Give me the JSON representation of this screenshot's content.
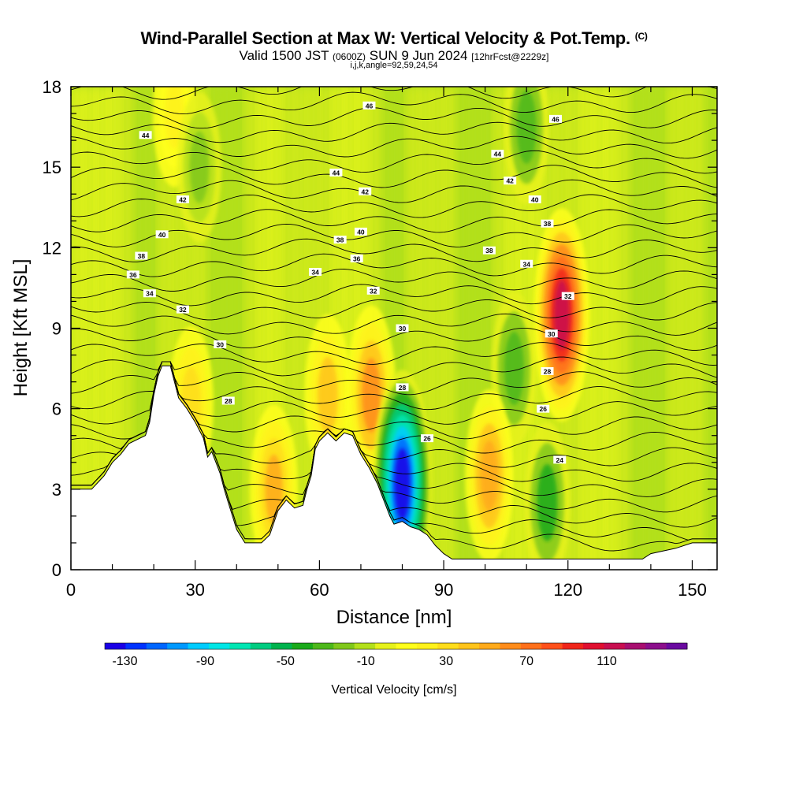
{
  "header": {
    "title": "Wind-Parallel Section at Max W: Vertical Velocity & Pot.Temp.",
    "copyright": "(C)",
    "valid_prefix": "Valid 1500 JST",
    "valid_utc": "(0600Z)",
    "valid_date": "SUN 9 Jun 2024",
    "forecast_info": "[12hrFcst@2229z]",
    "params": "i,j,k,angle=92,59,24,54"
  },
  "chart_data": {
    "type": "heatmap",
    "title": "Wind-Parallel Section at Max W: Vertical Velocity & Pot.Temp.",
    "xlabel": "Distance [nm]",
    "ylabel": "Height [Kft MSL]",
    "xlim": [
      0,
      156
    ],
    "ylim": [
      0,
      18
    ],
    "x_ticks": [
      0,
      30,
      60,
      90,
      120,
      150
    ],
    "y_ticks": [
      0,
      3,
      6,
      9,
      12,
      15,
      18
    ],
    "colorbar": {
      "label": "Vertical Velocity [cm/s]",
      "min": -140,
      "max": 150,
      "tick_values": [
        -130,
        -90,
        -50,
        -10,
        30,
        70,
        110
      ],
      "colors": [
        "#1a00e6",
        "#0033ff",
        "#0066ff",
        "#0099ff",
        "#00ccff",
        "#00e6e6",
        "#00e6b3",
        "#00cc80",
        "#00b34d",
        "#1aaa1a",
        "#4db81a",
        "#80c81a",
        "#b3e01a",
        "#e6f21a",
        "#ffff1a",
        "#fff21a",
        "#ffdd1a",
        "#ffc41a",
        "#ffaa1a",
        "#ff8c1a",
        "#ff701a",
        "#ff501a",
        "#f0261a",
        "#e01030",
        "#c80f50",
        "#a80f70",
        "#8c0f8c",
        "#6a0aa0"
      ]
    },
    "terrain": [
      [
        0,
        3
      ],
      [
        5,
        3
      ],
      [
        8,
        3.5
      ],
      [
        10,
        4
      ],
      [
        12,
        4.3
      ],
      [
        14,
        4.7
      ],
      [
        18,
        5
      ],
      [
        19,
        5.5
      ],
      [
        20,
        6.5
      ],
      [
        21,
        7.2
      ],
      [
        22,
        7.6
      ],
      [
        24,
        7.6
      ],
      [
        25,
        7
      ],
      [
        26,
        6.4
      ],
      [
        28,
        6
      ],
      [
        30,
        5.5
      ],
      [
        32,
        4.9
      ],
      [
        33,
        4.2
      ],
      [
        34,
        4.4
      ],
      [
        35,
        4
      ],
      [
        36,
        3.6
      ],
      [
        37,
        3
      ],
      [
        38,
        2.5
      ],
      [
        40,
        1.5
      ],
      [
        42,
        1
      ],
      [
        46,
        1
      ],
      [
        48,
        1.3
      ],
      [
        50,
        2.2
      ],
      [
        52,
        2.6
      ],
      [
        54,
        2.3
      ],
      [
        56,
        2.4
      ],
      [
        57,
        3
      ],
      [
        58,
        3.5
      ],
      [
        59,
        4.5
      ],
      [
        60,
        4.8
      ],
      [
        62,
        5.1
      ],
      [
        64,
        4.8
      ],
      [
        66,
        5.1
      ],
      [
        68,
        5
      ],
      [
        70,
        4.3
      ],
      [
        72,
        3.8
      ],
      [
        74,
        3.2
      ],
      [
        75,
        2.8
      ],
      [
        76,
        2.4
      ],
      [
        77,
        2
      ],
      [
        78,
        1.7
      ],
      [
        80,
        1.8
      ],
      [
        82,
        1.6
      ],
      [
        84,
        1.5
      ],
      [
        86,
        1.3
      ],
      [
        88,
        0.9
      ],
      [
        90,
        0.6
      ],
      [
        92,
        0.4
      ],
      [
        138,
        0.4
      ],
      [
        140,
        0.6
      ],
      [
        146,
        0.8
      ],
      [
        150,
        1
      ],
      [
        156,
        1
      ]
    ],
    "updraft_cores": [
      {
        "x": 118.5,
        "y": 9.5,
        "w": 110
      },
      {
        "x": 72.5,
        "y": 6.5,
        "w": 65
      },
      {
        "x": 101,
        "y": 3.5,
        "w": 55
      },
      {
        "x": 49,
        "y": 3,
        "w": 50
      },
      {
        "x": 62,
        "y": 6.5,
        "w": 40
      },
      {
        "x": 29,
        "y": 6.2,
        "w": 30
      },
      {
        "x": 25,
        "y": 17,
        "w": 20
      }
    ],
    "downdraft_cores": [
      {
        "x": 80,
        "y": 3.2,
        "w": -130
      },
      {
        "x": 107,
        "y": 7.5,
        "w": -30
      },
      {
        "x": 115,
        "y": 2.5,
        "w": -40
      },
      {
        "x": 31,
        "y": 15,
        "w": -25
      },
      {
        "x": 110,
        "y": 16.5,
        "w": -30
      }
    ],
    "isentrope_labels": [
      {
        "value": "46",
        "x": 72,
        "y": 17.3
      },
      {
        "value": "46",
        "x": 117,
        "y": 16.8
      },
      {
        "value": "44",
        "x": 18,
        "y": 16.2
      },
      {
        "value": "44",
        "x": 64,
        "y": 14.8
      },
      {
        "value": "44",
        "x": 103,
        "y": 15.5
      },
      {
        "value": "42",
        "x": 27,
        "y": 13.8
      },
      {
        "value": "42",
        "x": 71,
        "y": 14.1
      },
      {
        "value": "42",
        "x": 106,
        "y": 14.5
      },
      {
        "value": "40",
        "x": 22,
        "y": 12.5
      },
      {
        "value": "40",
        "x": 70,
        "y": 12.6
      },
      {
        "value": "40",
        "x": 112,
        "y": 13.8
      },
      {
        "value": "38",
        "x": 17,
        "y": 11.7
      },
      {
        "value": "38",
        "x": 65,
        "y": 12.3
      },
      {
        "value": "38",
        "x": 101,
        "y": 11.9
      },
      {
        "value": "38",
        "x": 115,
        "y": 12.9
      },
      {
        "value": "36",
        "x": 15,
        "y": 11
      },
      {
        "value": "36",
        "x": 69,
        "y": 11.6
      },
      {
        "value": "34",
        "x": 19,
        "y": 10.3
      },
      {
        "value": "34",
        "x": 59,
        "y": 11.1
      },
      {
        "value": "34",
        "x": 110,
        "y": 11.4
      },
      {
        "value": "32",
        "x": 27,
        "y": 9.7
      },
      {
        "value": "32",
        "x": 73,
        "y": 10.4
      },
      {
        "value": "32",
        "x": 120,
        "y": 10.2
      },
      {
        "value": "30",
        "x": 36,
        "y": 8.4
      },
      {
        "value": "30",
        "x": 80,
        "y": 9
      },
      {
        "value": "30",
        "x": 116,
        "y": 8.8
      },
      {
        "value": "28",
        "x": 38,
        "y": 6.3
      },
      {
        "value": "28",
        "x": 80,
        "y": 6.8
      },
      {
        "value": "28",
        "x": 115,
        "y": 7.4
      },
      {
        "value": "26",
        "x": 86,
        "y": 4.9
      },
      {
        "value": "26",
        "x": 114,
        "y": 6
      },
      {
        "value": "24",
        "x": 118,
        "y": 4.1
      }
    ]
  }
}
